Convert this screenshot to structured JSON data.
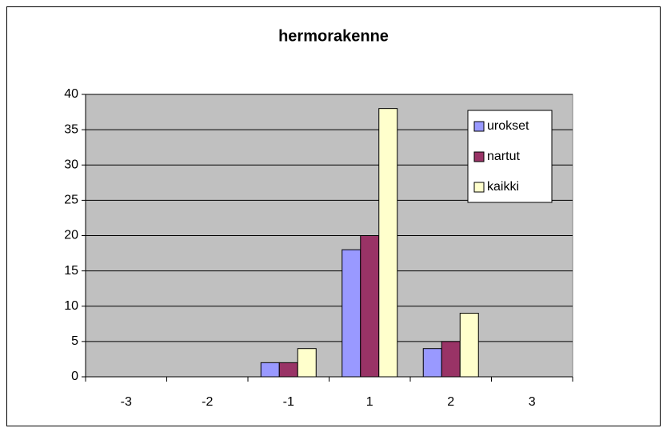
{
  "chart_data": {
    "type": "bar",
    "title": "hermorakenne",
    "categories": [
      "-3",
      "-2",
      "-1",
      "1",
      "2",
      "3"
    ],
    "series": [
      {
        "name": "urokset",
        "color": "#9999ff",
        "values": [
          0,
          0,
          2,
          18,
          4,
          0
        ]
      },
      {
        "name": "nartut",
        "color": "#993366",
        "values": [
          0,
          0,
          2,
          20,
          5,
          0
        ]
      },
      {
        "name": "kaikki",
        "color": "#ffffcc",
        "values": [
          0,
          0,
          4,
          38,
          9,
          0
        ]
      }
    ],
    "ylim": [
      0,
      40
    ],
    "yticks": [
      0,
      5,
      10,
      15,
      20,
      25,
      30,
      35,
      40
    ],
    "grid": true,
    "legend": "upper right"
  }
}
